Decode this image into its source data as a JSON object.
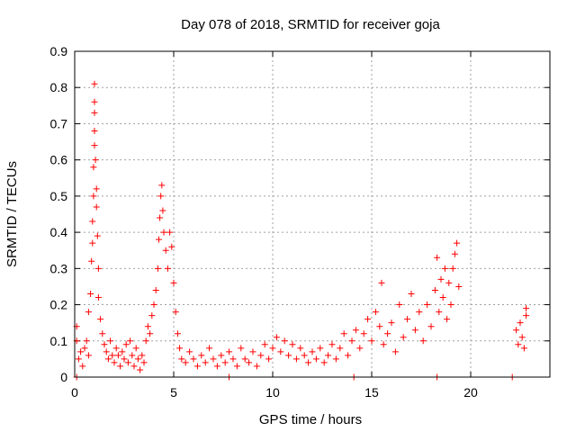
{
  "chart_data": {
    "type": "scatter",
    "title": "Day 078 of 2018, SRMTID for receiver goja",
    "xlabel": "GPS time / hours",
    "ylabel": "SRMTID / TECUs",
    "xlim": [
      0,
      24
    ],
    "ylim": [
      0,
      0.9
    ],
    "xticks": [
      0,
      5,
      10,
      15,
      20
    ],
    "xtick_labels": [
      "0",
      "5",
      "10",
      "15",
      "20"
    ],
    "yticks": [
      0,
      0.1,
      0.2,
      0.3,
      0.4,
      0.5,
      0.6,
      0.7,
      0.8,
      0.9
    ],
    "ytick_labels": [
      "0",
      "0.1",
      "0.2",
      "0.3",
      "0.4",
      "0.5",
      "0.6",
      "0.7",
      "0.8",
      "0.9"
    ],
    "grid": true,
    "marker": "+",
    "color": "#ff0000",
    "series": [
      {
        "name": "SRMTID",
        "points": [
          [
            0.1,
            0.14
          ],
          [
            0.1,
            0.1
          ],
          [
            0.2,
            0.05
          ],
          [
            0.3,
            0.07
          ],
          [
            0.4,
            0.03
          ],
          [
            0.5,
            0.08
          ],
          [
            0.6,
            0.1
          ],
          [
            0.7,
            0.18
          ],
          [
            0.7,
            0.06
          ],
          [
            0.8,
            0.23
          ],
          [
            0.85,
            0.32
          ],
          [
            0.9,
            0.37
          ],
          [
            0.9,
            0.43
          ],
          [
            0.95,
            0.5
          ],
          [
            0.95,
            0.58
          ],
          [
            1.0,
            0.64
          ],
          [
            1.0,
            0.68
          ],
          [
            1.0,
            0.73
          ],
          [
            1.0,
            0.76
          ],
          [
            1.0,
            0.81
          ],
          [
            1.05,
            0.6
          ],
          [
            1.1,
            0.52
          ],
          [
            1.1,
            0.47
          ],
          [
            1.15,
            0.39
          ],
          [
            1.2,
            0.3
          ],
          [
            1.2,
            0.22
          ],
          [
            1.3,
            0.16
          ],
          [
            1.4,
            0.12
          ],
          [
            1.5,
            0.09
          ],
          [
            1.6,
            0.07
          ],
          [
            1.7,
            0.05
          ],
          [
            1.8,
            0.1
          ],
          [
            1.9,
            0.06
          ],
          [
            2.0,
            0.04
          ],
          [
            2.1,
            0.08
          ],
          [
            2.2,
            0.06
          ],
          [
            2.3,
            0.03
          ],
          [
            2.4,
            0.07
          ],
          [
            2.5,
            0.05
          ],
          [
            2.6,
            0.09
          ],
          [
            2.7,
            0.04
          ],
          [
            2.8,
            0.1
          ],
          [
            2.9,
            0.06
          ],
          [
            3.0,
            0.03
          ],
          [
            3.1,
            0.08
          ],
          [
            3.2,
            0.05
          ],
          [
            3.3,
            0.02
          ],
          [
            3.4,
            0.06
          ],
          [
            3.5,
            0.04
          ],
          [
            3.6,
            0.1
          ],
          [
            3.7,
            0.14
          ],
          [
            3.8,
            0.12
          ],
          [
            3.9,
            0.17
          ],
          [
            4.0,
            0.2
          ],
          [
            4.1,
            0.24
          ],
          [
            4.2,
            0.3
          ],
          [
            4.25,
            0.38
          ],
          [
            4.3,
            0.44
          ],
          [
            4.35,
            0.5
          ],
          [
            4.4,
            0.53
          ],
          [
            4.45,
            0.46
          ],
          [
            4.5,
            0.4
          ],
          [
            4.6,
            0.35
          ],
          [
            4.7,
            0.3
          ],
          [
            4.8,
            0.4
          ],
          [
            4.9,
            0.36
          ],
          [
            5.0,
            0.26
          ],
          [
            5.1,
            0.18
          ],
          [
            5.2,
            0.12
          ],
          [
            5.3,
            0.08
          ],
          [
            5.4,
            0.05
          ],
          [
            5.6,
            0.04
          ],
          [
            5.8,
            0.07
          ],
          [
            6.0,
            0.05
          ],
          [
            6.2,
            0.03
          ],
          [
            6.4,
            0.06
          ],
          [
            6.6,
            0.04
          ],
          [
            6.8,
            0.08
          ],
          [
            7.0,
            0.05
          ],
          [
            7.2,
            0.03
          ],
          [
            7.4,
            0.06
          ],
          [
            7.6,
            0.04
          ],
          [
            7.8,
            0.07
          ],
          [
            8.0,
            0.05
          ],
          [
            8.2,
            0.03
          ],
          [
            8.4,
            0.08
          ],
          [
            8.6,
            0.05
          ],
          [
            8.8,
            0.04
          ],
          [
            9.0,
            0.07
          ],
          [
            9.2,
            0.03
          ],
          [
            9.4,
            0.06
          ],
          [
            9.6,
            0.09
          ],
          [
            9.8,
            0.05
          ],
          [
            10.0,
            0.08
          ],
          [
            10.2,
            0.11
          ],
          [
            10.4,
            0.07
          ],
          [
            10.6,
            0.1
          ],
          [
            10.8,
            0.06
          ],
          [
            11.0,
            0.09
          ],
          [
            11.2,
            0.05
          ],
          [
            11.4,
            0.08
          ],
          [
            11.6,
            0.06
          ],
          [
            11.8,
            0.04
          ],
          [
            12.0,
            0.07
          ],
          [
            12.2,
            0.05
          ],
          [
            12.4,
            0.08
          ],
          [
            12.6,
            0.04
          ],
          [
            12.8,
            0.06
          ],
          [
            13.0,
            0.09
          ],
          [
            13.2,
            0.05
          ],
          [
            13.4,
            0.08
          ],
          [
            13.6,
            0.12
          ],
          [
            13.8,
            0.06
          ],
          [
            14.0,
            0.1
          ],
          [
            14.2,
            0.13
          ],
          [
            14.4,
            0.08
          ],
          [
            14.6,
            0.12
          ],
          [
            14.8,
            0.16
          ],
          [
            15.0,
            0.1
          ],
          [
            15.2,
            0.18
          ],
          [
            15.4,
            0.14
          ],
          [
            15.5,
            0.26
          ],
          [
            15.6,
            0.09
          ],
          [
            15.8,
            0.12
          ],
          [
            16.0,
            0.15
          ],
          [
            16.2,
            0.07
          ],
          [
            16.4,
            0.2
          ],
          [
            16.6,
            0.11
          ],
          [
            16.8,
            0.16
          ],
          [
            17.0,
            0.23
          ],
          [
            17.2,
            0.13
          ],
          [
            17.4,
            0.18
          ],
          [
            17.6,
            0.1
          ],
          [
            17.8,
            0.2
          ],
          [
            18.0,
            0.14
          ],
          [
            18.2,
            0.24
          ],
          [
            18.3,
            0.33
          ],
          [
            18.4,
            0.18
          ],
          [
            18.5,
            0.27
          ],
          [
            18.6,
            0.22
          ],
          [
            18.7,
            0.3
          ],
          [
            18.8,
            0.16
          ],
          [
            18.9,
            0.26
          ],
          [
            19.0,
            0.2
          ],
          [
            19.1,
            0.3
          ],
          [
            19.2,
            0.34
          ],
          [
            19.3,
            0.37
          ],
          [
            19.4,
            0.25
          ],
          [
            22.3,
            0.13
          ],
          [
            22.4,
            0.09
          ],
          [
            22.5,
            0.15
          ],
          [
            22.6,
            0.11
          ],
          [
            22.7,
            0.08
          ],
          [
            22.8,
            0.19
          ],
          [
            22.8,
            0.17
          ],
          [
            0.1,
            0.0
          ],
          [
            7.8,
            0.0
          ],
          [
            14.1,
            0.0
          ],
          [
            18.3,
            0.0
          ],
          [
            22.1,
            0.0
          ]
        ]
      }
    ]
  }
}
